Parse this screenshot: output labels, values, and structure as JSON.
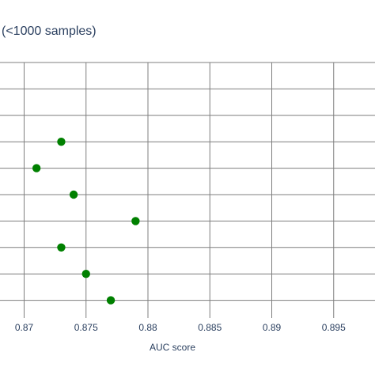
{
  "chart_data": {
    "type": "scatter",
    "title": "(<1000 samples)",
    "xlabel": "AUC score",
    "ylabel": "",
    "xlim": [
      0.8675,
      0.8985
    ],
    "x_ticks": [
      0.87,
      0.875,
      0.88,
      0.885,
      0.89,
      0.895
    ],
    "x_tick_labels": [
      "0.87",
      "0.875",
      "0.88",
      "0.885",
      "0.89",
      "0.895"
    ],
    "grid": true,
    "marker_color": "#008000",
    "grid_color": "#7f7f7f",
    "points": [
      {
        "x": 0.873,
        "row": 3
      },
      {
        "x": 0.871,
        "row": 4
      },
      {
        "x": 0.874,
        "row": 5
      },
      {
        "x": 0.879,
        "row": 6
      },
      {
        "x": 0.873,
        "row": 7
      },
      {
        "x": 0.875,
        "row": 8
      },
      {
        "x": 0.877,
        "row": 9
      }
    ]
  }
}
